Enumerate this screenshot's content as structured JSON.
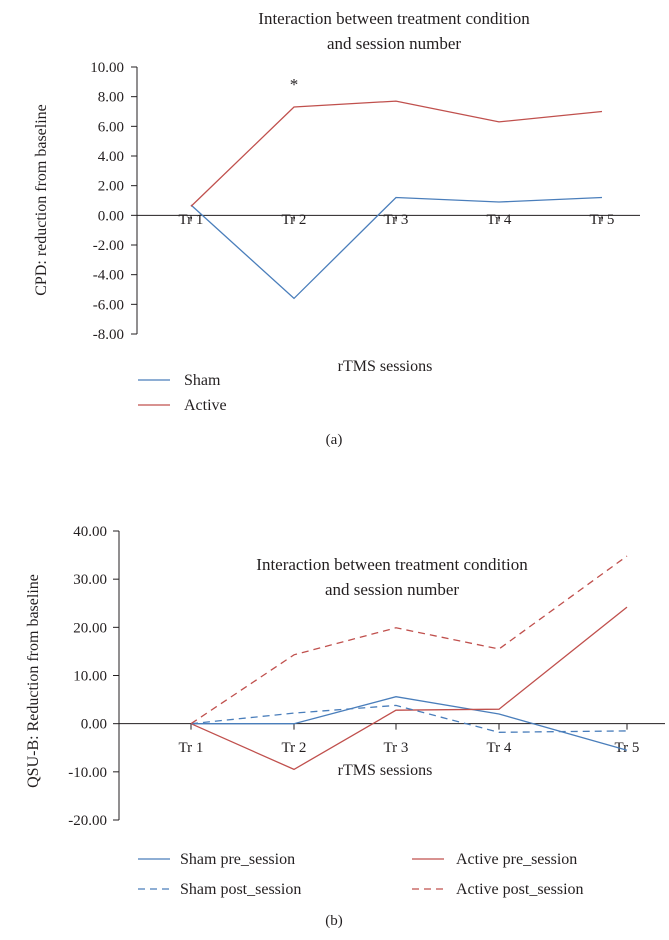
{
  "chart_data": [
    {
      "type": "line",
      "panel": "(a)",
      "title_lines": [
        "Interaction between treatment condition",
        "and session number"
      ],
      "ylabel": "CPD: reduction from baseline",
      "xlabel": "rTMS sessions",
      "categories": [
        "Tr 1",
        "Tr 2",
        "Tr 3",
        "Tr 4",
        "Tr 5"
      ],
      "ylim": [
        -8,
        10
      ],
      "yticks": [
        "10.00",
        "8.00",
        "6.00",
        "4.00",
        "2.00",
        "0.00",
        "-2.00",
        "-4.00",
        "-6.00",
        "-8.00"
      ],
      "series": [
        {
          "name": "Sham",
          "values": [
            0.7,
            -5.6,
            1.2,
            0.9,
            1.2
          ],
          "color": "#4a7ebb",
          "dash": "solid"
        },
        {
          "name": "Active",
          "values": [
            0.6,
            7.3,
            7.7,
            6.3,
            7.0
          ],
          "color": "#c0504d",
          "dash": "solid"
        }
      ],
      "annotations": [
        {
          "text": "*",
          "category": "Tr 2",
          "y": 9.0
        }
      ],
      "legend": "bottom-left"
    },
    {
      "type": "line",
      "panel": "(b)",
      "title_lines": [
        "Interaction between treatment condition",
        "and session number"
      ],
      "ylabel": "QSU-B: Reduction from baseline",
      "xlabel": "rTMS sessions",
      "categories": [
        "Tr 1",
        "Tr 2",
        "Tr 3",
        "Tr 4",
        "Tr 5"
      ],
      "ylim": [
        -20,
        40
      ],
      "yticks": [
        "40.00",
        "30.00",
        "20.00",
        "10.00",
        "0.00",
        "-10.00",
        "-20.00"
      ],
      "series": [
        {
          "name": "Sham pre_session",
          "values": [
            0,
            0,
            5.6,
            2.0,
            -5.5
          ],
          "color": "#4a7ebb",
          "dash": "solid"
        },
        {
          "name": "Active pre_session",
          "values": [
            0,
            -9.5,
            2.8,
            3.0,
            24.2
          ],
          "color": "#c0504d",
          "dash": "solid"
        },
        {
          "name": "Sham post_session",
          "values": [
            0,
            2.2,
            3.8,
            -1.8,
            -1.5
          ],
          "color": "#4a7ebb",
          "dash": "dashed"
        },
        {
          "name": "Active post_session",
          "values": [
            0,
            14.3,
            19.9,
            15.5,
            34.8
          ],
          "color": "#c0504d",
          "dash": "dashed"
        }
      ],
      "legend": "bottom"
    }
  ]
}
